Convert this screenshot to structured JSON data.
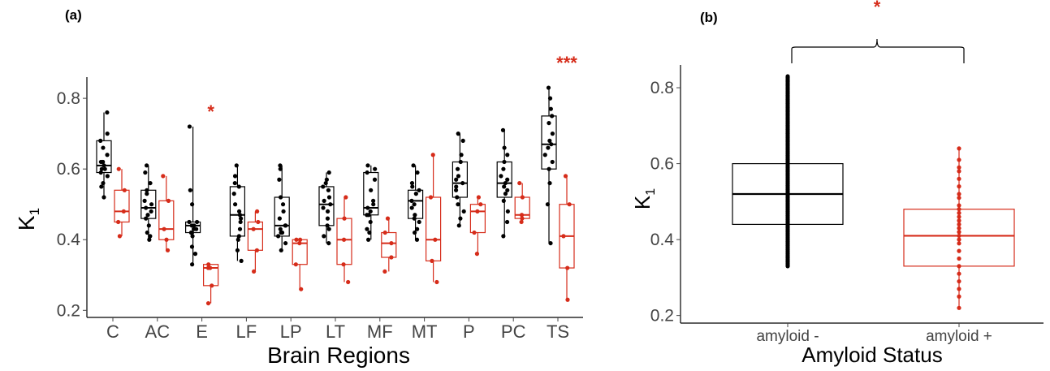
{
  "panels": {
    "a_label": "(a)",
    "b_label": "(b)"
  },
  "colors": {
    "amyloid_negative": "#000000",
    "amyloid_positive": "#d62c1a"
  },
  "chart_data": [
    {
      "type": "box",
      "panel": "a",
      "xlabel": "Brain Regions",
      "ylabel": "K",
      "ylabel_subscript": "1",
      "ylim": [
        0.18,
        0.86
      ],
      "yticks": [
        0.2,
        0.4,
        0.6,
        0.8
      ],
      "ytick_labels": [
        "0.2",
        "0.4",
        "0.6",
        "0.8"
      ],
      "grid": false,
      "categories": [
        "C",
        "AC",
        "E",
        "LF",
        "LP",
        "LT",
        "MF",
        "MT",
        "P",
        "PC",
        "TS"
      ],
      "significance": [
        "",
        "",
        "*",
        "",
        "",
        "",
        "",
        "",
        "",
        "",
        "***"
      ],
      "series": [
        {
          "group": "amyloid -",
          "color": "#000000",
          "boxes": [
            {
              "q1": 0.59,
              "median": 0.61,
              "q3": 0.68,
              "low": 0.52,
              "high": 0.76,
              "points": [
                0.76,
                0.7,
                0.68,
                0.66,
                0.64,
                0.62,
                0.62,
                0.61,
                0.6,
                0.6,
                0.59,
                0.58,
                0.56,
                0.55,
                0.52
              ]
            },
            {
              "q1": 0.46,
              "median": 0.49,
              "q3": 0.54,
              "low": 0.4,
              "high": 0.61,
              "points": [
                0.61,
                0.59,
                0.56,
                0.54,
                0.53,
                0.51,
                0.5,
                0.49,
                0.48,
                0.47,
                0.46,
                0.44,
                0.42,
                0.41,
                0.4
              ]
            },
            {
              "q1": 0.42,
              "median": 0.44,
              "q3": 0.45,
              "low": 0.33,
              "high": 0.72,
              "points": [
                0.72,
                0.54,
                0.5,
                0.45,
                0.45,
                0.44,
                0.44,
                0.43,
                0.43,
                0.42,
                0.42,
                0.41,
                0.38,
                0.36,
                0.33
              ]
            },
            {
              "q1": 0.41,
              "median": 0.47,
              "q3": 0.55,
              "low": 0.34,
              "high": 0.61,
              "points": [
                0.61,
                0.58,
                0.56,
                0.55,
                0.53,
                0.5,
                0.48,
                0.47,
                0.46,
                0.45,
                0.43,
                0.41,
                0.4,
                0.37,
                0.34
              ]
            },
            {
              "q1": 0.41,
              "median": 0.44,
              "q3": 0.52,
              "low": 0.37,
              "high": 0.61,
              "points": [
                0.61,
                0.6,
                0.57,
                0.52,
                0.5,
                0.48,
                0.46,
                0.44,
                0.44,
                0.43,
                0.42,
                0.42,
                0.41,
                0.39,
                0.37
              ]
            },
            {
              "q1": 0.44,
              "median": 0.5,
              "q3": 0.55,
              "low": 0.39,
              "high": 0.59,
              "points": [
                0.59,
                0.57,
                0.56,
                0.55,
                0.54,
                0.52,
                0.51,
                0.5,
                0.49,
                0.48,
                0.46,
                0.44,
                0.43,
                0.41,
                0.39
              ]
            },
            {
              "q1": 0.47,
              "median": 0.49,
              "q3": 0.59,
              "low": 0.4,
              "high": 0.61,
              "points": [
                0.61,
                0.6,
                0.59,
                0.57,
                0.54,
                0.51,
                0.5,
                0.49,
                0.48,
                0.47,
                0.47,
                0.45,
                0.43,
                0.42,
                0.4
              ]
            },
            {
              "q1": 0.46,
              "median": 0.51,
              "q3": 0.54,
              "low": 0.4,
              "high": 0.61,
              "points": [
                0.61,
                0.59,
                0.56,
                0.55,
                0.54,
                0.53,
                0.51,
                0.5,
                0.49,
                0.47,
                0.46,
                0.45,
                0.43,
                0.42,
                0.4
              ]
            },
            {
              "q1": 0.52,
              "median": 0.56,
              "q3": 0.62,
              "low": 0.44,
              "high": 0.7,
              "points": [
                0.7,
                0.68,
                0.64,
                0.62,
                0.6,
                0.58,
                0.57,
                0.56,
                0.55,
                0.54,
                0.52,
                0.5,
                0.48,
                0.46,
                0.44
              ]
            },
            {
              "q1": 0.52,
              "median": 0.56,
              "q3": 0.62,
              "low": 0.41,
              "high": 0.71,
              "points": [
                0.71,
                0.66,
                0.64,
                0.62,
                0.6,
                0.58,
                0.57,
                0.56,
                0.55,
                0.54,
                0.53,
                0.51,
                0.48,
                0.45,
                0.41
              ]
            },
            {
              "q1": 0.6,
              "median": 0.67,
              "q3": 0.75,
              "low": 0.39,
              "high": 0.83,
              "points": [
                0.83,
                0.8,
                0.77,
                0.75,
                0.73,
                0.7,
                0.68,
                0.67,
                0.66,
                0.64,
                0.62,
                0.6,
                0.56,
                0.5,
                0.39
              ]
            }
          ]
        },
        {
          "group": "amyloid +",
          "color": "#d62c1a",
          "boxes": [
            {
              "q1": 0.45,
              "median": 0.48,
              "q3": 0.54,
              "low": 0.41,
              "high": 0.6,
              "points": [
                0.6,
                0.54,
                0.48,
                0.45,
                0.41
              ]
            },
            {
              "q1": 0.4,
              "median": 0.43,
              "q3": 0.51,
              "low": 0.37,
              "high": 0.58,
              "points": [
                0.58,
                0.51,
                0.43,
                0.4,
                0.37
              ]
            },
            {
              "q1": 0.27,
              "median": 0.32,
              "q3": 0.33,
              "low": 0.22,
              "high": 0.33,
              "points": [
                0.33,
                0.32,
                0.32,
                0.27,
                0.22
              ]
            },
            {
              "q1": 0.37,
              "median": 0.43,
              "q3": 0.45,
              "low": 0.31,
              "high": 0.48,
              "points": [
                0.48,
                0.45,
                0.43,
                0.37,
                0.31
              ]
            },
            {
              "q1": 0.33,
              "median": 0.39,
              "q3": 0.4,
              "low": 0.26,
              "high": 0.4,
              "points": [
                0.4,
                0.4,
                0.39,
                0.33,
                0.26
              ]
            },
            {
              "q1": 0.33,
              "median": 0.4,
              "q3": 0.46,
              "low": 0.28,
              "high": 0.52,
              "points": [
                0.52,
                0.46,
                0.4,
                0.33,
                0.28
              ]
            },
            {
              "q1": 0.35,
              "median": 0.39,
              "q3": 0.42,
              "low": 0.31,
              "high": 0.46,
              "points": [
                0.46,
                0.42,
                0.39,
                0.35,
                0.31
              ]
            },
            {
              "q1": 0.34,
              "median": 0.4,
              "q3": 0.52,
              "low": 0.28,
              "high": 0.64,
              "points": [
                0.64,
                0.52,
                0.4,
                0.34,
                0.28
              ]
            },
            {
              "q1": 0.42,
              "median": 0.48,
              "q3": 0.5,
              "low": 0.36,
              "high": 0.52,
              "points": [
                0.52,
                0.5,
                0.48,
                0.42,
                0.36
              ]
            },
            {
              "q1": 0.46,
              "median": 0.47,
              "q3": 0.52,
              "low": 0.45,
              "high": 0.56,
              "points": [
                0.56,
                0.52,
                0.47,
                0.46,
                0.45
              ]
            },
            {
              "q1": 0.32,
              "median": 0.41,
              "q3": 0.5,
              "low": 0.23,
              "high": 0.58,
              "points": [
                0.58,
                0.5,
                0.41,
                0.32,
                0.23
              ]
            }
          ]
        }
      ]
    },
    {
      "type": "box",
      "panel": "b",
      "xlabel": "Amyloid Status",
      "ylabel": "K",
      "ylabel_subscript": "1",
      "ylim": [
        0.18,
        0.86
      ],
      "yticks": [
        0.2,
        0.4,
        0.6,
        0.8
      ],
      "ytick_labels": [
        "0.2",
        "0.4",
        "0.6",
        "0.8"
      ],
      "grid": false,
      "categories": [
        "amyloid -",
        "amyloid +"
      ],
      "significance_bracket": "*",
      "series": [
        {
          "group": "amyloid -",
          "color": "#000000",
          "box": {
            "q1": 0.44,
            "median": 0.52,
            "q3": 0.6,
            "low": 0.33,
            "high": 0.83
          }
        },
        {
          "group": "amyloid +",
          "color": "#d62c1a",
          "box": {
            "q1": 0.33,
            "median": 0.41,
            "q3": 0.48,
            "low": 0.22,
            "high": 0.64
          },
          "points": [
            0.64,
            0.61,
            0.59,
            0.58,
            0.56,
            0.54,
            0.52,
            0.51,
            0.49,
            0.48,
            0.47,
            0.46,
            0.45,
            0.44,
            0.43,
            0.42,
            0.41,
            0.4,
            0.39,
            0.37,
            0.35,
            0.33,
            0.31,
            0.29,
            0.27,
            0.25,
            0.22
          ]
        }
      ]
    }
  ]
}
